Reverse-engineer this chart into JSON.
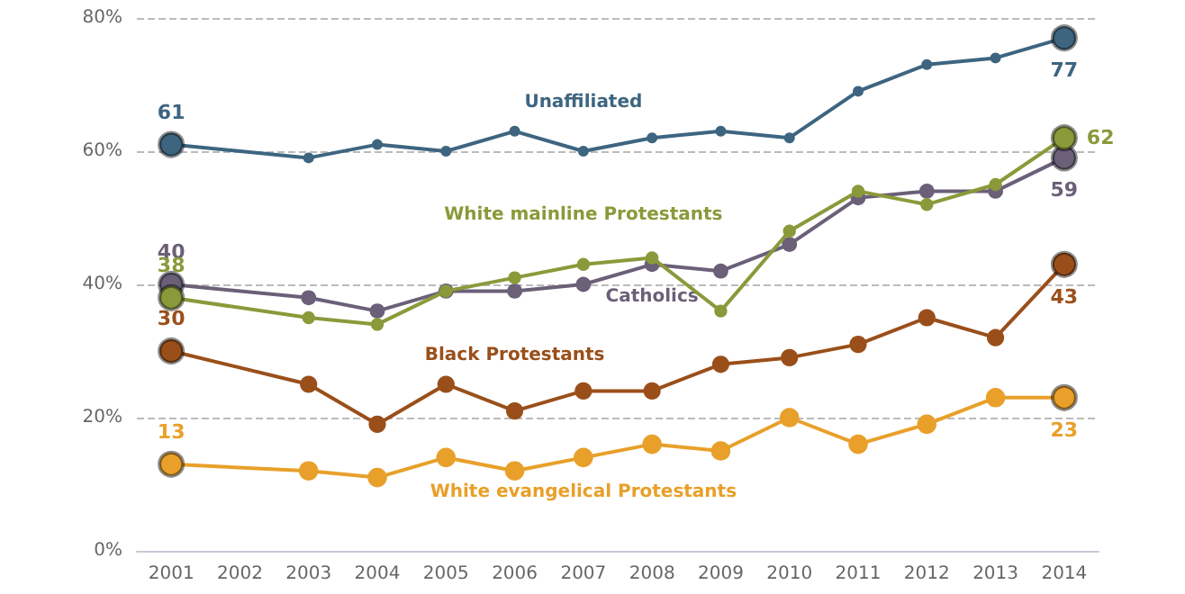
{
  "chart_data": {
    "type": "line",
    "categories": [
      "2001",
      "2002",
      "2003",
      "2004",
      "2005",
      "2006",
      "2007",
      "2008",
      "2009",
      "2010",
      "2011",
      "2012",
      "2013",
      "2014"
    ],
    "series": [
      {
        "name": "Unaffiliated",
        "color": "#3d6580",
        "values": [
          61,
          null,
          59,
          61,
          60,
          63,
          60,
          62,
          63,
          62,
          69,
          73,
          74,
          77
        ],
        "value_labels": [
          "61",
          null,
          null,
          null,
          null,
          null,
          null,
          null,
          null,
          null,
          null,
          null,
          null,
          "77"
        ]
      },
      {
        "name": "White mainline Protestants",
        "color": "#8a9a3a",
        "values": [
          38,
          null,
          35,
          34,
          39,
          41,
          43,
          44,
          36,
          48,
          54,
          52,
          55,
          62
        ],
        "value_labels": [
          "38",
          null,
          null,
          null,
          null,
          null,
          null,
          null,
          null,
          null,
          null,
          null,
          null,
          "62"
        ]
      },
      {
        "name": "Catholics",
        "color": "#6b6078",
        "values": [
          40,
          null,
          38,
          36,
          39,
          39,
          40,
          43,
          42,
          46,
          53,
          54,
          54,
          59
        ],
        "value_labels": [
          "40",
          null,
          null,
          null,
          null,
          null,
          null,
          null,
          null,
          null,
          null,
          null,
          null,
          "59"
        ]
      },
      {
        "name": "Black Protestants",
        "color": "#9a4f1a",
        "values": [
          30,
          null,
          25,
          19,
          25,
          21,
          24,
          24,
          28,
          29,
          31,
          35,
          32,
          43
        ],
        "value_labels": [
          "30",
          null,
          null,
          null,
          null,
          null,
          null,
          null,
          null,
          null,
          null,
          null,
          null,
          "43"
        ]
      },
      {
        "name": "White evangelical Protestants",
        "color": "#e8a02a",
        "values": [
          13,
          null,
          12,
          11,
          14,
          12,
          14,
          16,
          15,
          20,
          16,
          19,
          23,
          23
        ],
        "value_labels": [
          "13",
          null,
          null,
          null,
          null,
          null,
          null,
          null,
          null,
          null,
          null,
          null,
          null,
          "23"
        ]
      }
    ],
    "ylim": [
      0,
      80
    ],
    "yticks": [
      {
        "value": 0,
        "label": "0%"
      },
      {
        "value": 20,
        "label": "20%"
      },
      {
        "value": 40,
        "label": "40%"
      },
      {
        "value": 60,
        "label": "60%"
      },
      {
        "value": 80,
        "label": "80%"
      }
    ],
    "grid": "y",
    "legend": false,
    "marker": "circle",
    "line_style": "solid"
  }
}
